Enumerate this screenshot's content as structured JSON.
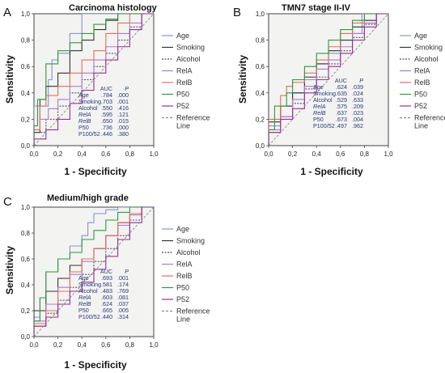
{
  "figure": {
    "auc_header": "AUC",
    "p_header": "P",
    "series_styles": [
      {
        "name": "Age",
        "color": "#8a92d6",
        "dash": ""
      },
      {
        "name": "Smoking",
        "color": "#333333",
        "dash": ""
      },
      {
        "name": "Alcohol",
        "color": "#555555",
        "dash": "2,1.5"
      },
      {
        "name": "RelA",
        "color": "#b07ad0",
        "dash": ""
      },
      {
        "name": "RelB",
        "color": "#e07060",
        "dash": ""
      },
      {
        "name": "P50",
        "color": "#2e9a3e",
        "dash": ""
      },
      {
        "name": "P52",
        "color": "#9a2f9a",
        "dash": ""
      },
      {
        "name": "Reference Line",
        "color": "#8a8a8a",
        "dash": "3,2"
      }
    ]
  },
  "chart_data": [
    {
      "type": "line",
      "panel": "A",
      "title": "Carcinoma histology",
      "xlabel": "1 - Specificity",
      "ylabel": "Sensitivity",
      "xlim": [
        0,
        1
      ],
      "ylim": [
        0,
        1
      ],
      "ticks": [
        "0,0",
        "0,2",
        "0,4",
        "0,6",
        "0,8",
        "1,0"
      ],
      "legend": [
        "Age",
        "Smoking",
        "Alcohol",
        "RelA",
        "RelB",
        "P50",
        "P52",
        "Reference",
        "Line"
      ],
      "table": [
        {
          "label": "Age",
          "auc": ".784",
          "p": ".000"
        },
        {
          "label": "Smoking",
          "auc": ".703",
          "p": ".001"
        },
        {
          "label": "Alcohol",
          "auc": ".550",
          "p": ".416"
        },
        {
          "label": "RelA",
          "auc": ".595",
          "p": ".121"
        },
        {
          "label": "RelB",
          "auc": ".650",
          "p": ".015"
        },
        {
          "label": "P50",
          "auc": ".736",
          "p": ".000"
        },
        {
          "label": "P100/52",
          "auc": ".446",
          "p": ".380"
        }
      ],
      "series": [
        {
          "name": "Age",
          "x": [
            0,
            0,
            0.12,
            0.15,
            0.2,
            0.3,
            0.4,
            0.5,
            0.6,
            0.7,
            0.8,
            1
          ],
          "y": [
            0,
            0.25,
            0.3,
            0.5,
            0.65,
            0.7,
            0.85,
            1,
            1,
            1,
            1,
            1
          ]
        },
        {
          "name": "Smoking",
          "x": [
            0,
            0.05,
            0.1,
            0.2,
            0.3,
            0.4,
            0.5,
            0.6,
            0.7,
            0.8,
            1
          ],
          "y": [
            0,
            0.1,
            0.35,
            0.45,
            0.55,
            0.72,
            0.8,
            0.88,
            0.95,
            1,
            1
          ]
        },
        {
          "name": "Alcohol",
          "x": [
            0,
            0.1,
            0.2,
            0.3,
            0.4,
            0.5,
            0.6,
            0.7,
            0.8,
            0.9,
            1
          ],
          "y": [
            0,
            0.1,
            0.2,
            0.3,
            0.4,
            0.5,
            0.6,
            0.7,
            0.8,
            0.9,
            1
          ]
        },
        {
          "name": "RelA",
          "x": [
            0,
            0.05,
            0.12,
            0.2,
            0.3,
            0.4,
            0.5,
            0.6,
            0.7,
            0.8,
            0.9,
            1
          ],
          "y": [
            0,
            0.12,
            0.2,
            0.28,
            0.35,
            0.45,
            0.55,
            0.65,
            0.75,
            0.85,
            0.93,
            1
          ]
        },
        {
          "name": "RelB",
          "x": [
            0,
            0.05,
            0.1,
            0.2,
            0.3,
            0.4,
            0.5,
            0.6,
            0.7,
            0.8,
            1
          ],
          "y": [
            0,
            0.12,
            0.3,
            0.38,
            0.45,
            0.55,
            0.65,
            0.72,
            0.85,
            0.93,
            1
          ]
        },
        {
          "name": "P50",
          "x": [
            0,
            0.03,
            0.1,
            0.2,
            0.3,
            0.4,
            0.5,
            0.6,
            0.7,
            0.8,
            1
          ],
          "y": [
            0,
            0.15,
            0.35,
            0.62,
            0.72,
            0.78,
            0.85,
            0.92,
            0.96,
            1,
            1
          ]
        },
        {
          "name": "P52",
          "x": [
            0,
            0.1,
            0.2,
            0.3,
            0.4,
            0.5,
            0.6,
            0.7,
            0.8,
            0.9,
            1
          ],
          "y": [
            0,
            0.05,
            0.12,
            0.2,
            0.32,
            0.42,
            0.55,
            0.65,
            0.75,
            0.88,
            1
          ]
        },
        {
          "name": "Reference Line",
          "x": [
            0,
            1
          ],
          "y": [
            0,
            1
          ]
        }
      ]
    },
    {
      "type": "line",
      "panel": "B",
      "title": "TMN7 stage II-IV",
      "xlabel": "1 - Specificity",
      "ylabel": "Sensitivity",
      "xlim": [
        0,
        1
      ],
      "ylim": [
        0,
        1
      ],
      "ticks": [
        "0,0",
        "0,2",
        "0,4",
        "0,6",
        "0,8",
        "1,0"
      ],
      "legend": [
        "Age",
        "Smoking",
        "Alcohol",
        "RelA",
        "RelB",
        "P50",
        "P52",
        "Reference",
        "Line"
      ],
      "table": [
        {
          "label": "Age",
          "auc": ".624",
          "p": ".039"
        },
        {
          "label": "Smoking",
          "auc": ".635",
          "p": ".024"
        },
        {
          "label": "Alcohol",
          "auc": ".529",
          "p": ".633"
        },
        {
          "label": "RelA",
          "auc": ".575",
          "p": ".209"
        },
        {
          "label": "RelB",
          "auc": ".637",
          "p": ".023"
        },
        {
          "label": "P50",
          "auc": ".673",
          "p": ".004"
        },
        {
          "label": "P100/52",
          "auc": ".497",
          "p": ".962"
        }
      ],
      "series": [
        {
          "name": "Age",
          "x": [
            0,
            0.1,
            0.2,
            0.3,
            0.4,
            0.5,
            0.6,
            0.7,
            0.78,
            0.82,
            1
          ],
          "y": [
            0,
            0.15,
            0.3,
            0.4,
            0.5,
            0.62,
            0.7,
            0.8,
            0.85,
            1,
            1
          ]
        },
        {
          "name": "Smoking",
          "x": [
            0,
            0.1,
            0.2,
            0.3,
            0.4,
            0.5,
            0.6,
            0.7,
            0.8,
            0.9,
            1
          ],
          "y": [
            0,
            0.18,
            0.3,
            0.4,
            0.52,
            0.62,
            0.72,
            0.8,
            0.9,
            0.95,
            1
          ]
        },
        {
          "name": "Alcohol",
          "x": [
            0,
            0.1,
            0.2,
            0.3,
            0.4,
            0.5,
            0.6,
            0.7,
            0.8,
            0.9,
            1
          ],
          "y": [
            0,
            0.1,
            0.22,
            0.32,
            0.43,
            0.52,
            0.62,
            0.72,
            0.82,
            0.92,
            1
          ]
        },
        {
          "name": "RelA",
          "x": [
            0,
            0.1,
            0.2,
            0.3,
            0.4,
            0.5,
            0.6,
            0.7,
            0.8,
            0.9,
            1
          ],
          "y": [
            0,
            0.12,
            0.22,
            0.35,
            0.45,
            0.58,
            0.65,
            0.75,
            0.85,
            0.93,
            1
          ]
        },
        {
          "name": "RelB",
          "x": [
            0,
            0.1,
            0.15,
            0.2,
            0.3,
            0.4,
            0.5,
            0.6,
            0.7,
            0.8,
            1
          ],
          "y": [
            0,
            0.2,
            0.38,
            0.45,
            0.48,
            0.55,
            0.65,
            0.75,
            0.85,
            0.93,
            1
          ]
        },
        {
          "name": "P50",
          "x": [
            0,
            0.05,
            0.15,
            0.2,
            0.3,
            0.4,
            0.5,
            0.6,
            0.7,
            0.8,
            1
          ],
          "y": [
            0,
            0.12,
            0.3,
            0.4,
            0.5,
            0.6,
            0.7,
            0.8,
            0.88,
            0.95,
            1
          ]
        },
        {
          "name": "P52",
          "x": [
            0,
            0.1,
            0.2,
            0.3,
            0.4,
            0.5,
            0.6,
            0.7,
            0.8,
            0.9,
            1
          ],
          "y": [
            0,
            0.1,
            0.2,
            0.28,
            0.4,
            0.5,
            0.6,
            0.7,
            0.8,
            0.9,
            1
          ]
        },
        {
          "name": "Reference Line",
          "x": [
            0,
            1
          ],
          "y": [
            0,
            1
          ]
        }
      ]
    },
    {
      "type": "line",
      "panel": "C",
      "title": "Medium/high grade",
      "xlabel": "1 - Specificity",
      "ylabel": "Sensitivity",
      "xlim": [
        0,
        1
      ],
      "ylim": [
        0,
        1
      ],
      "ticks": [
        "0,0",
        "0,2",
        "0,4",
        "0,6",
        "0,8",
        "1,0"
      ],
      "legend": [
        "Age",
        "Smoking",
        "Alcohol",
        "RelA",
        "RelB",
        "P50",
        "P52",
        "Reference",
        "Line"
      ],
      "table": [
        {
          "label": "Age",
          "auc": ".693",
          "p": ".001"
        },
        {
          "label": "Smoking",
          "auc": ".581",
          "p": ".174"
        },
        {
          "label": "Alcohol",
          "auc": ".483",
          "p": ".769"
        },
        {
          "label": "RelA",
          "auc": ".603",
          "p": ".081"
        },
        {
          "label": "RelB",
          "auc": ".624",
          "p": ".037"
        },
        {
          "label": "P50",
          "auc": ".665",
          "p": ".005"
        },
        {
          "label": "P100/52",
          "auc": ".440",
          "p": ".314"
        }
      ],
      "series": [
        {
          "name": "Age",
          "x": [
            0,
            0.05,
            0.1,
            0.2,
            0.3,
            0.4,
            0.45,
            0.5,
            0.6,
            0.7,
            0.8,
            1
          ],
          "y": [
            0,
            0.15,
            0.3,
            0.5,
            0.6,
            0.7,
            0.78,
            0.88,
            0.95,
            0.98,
            1,
            1
          ]
        },
        {
          "name": "Smoking",
          "x": [
            0,
            0.1,
            0.2,
            0.3,
            0.4,
            0.5,
            0.6,
            0.7,
            0.8,
            0.9,
            1
          ],
          "y": [
            0,
            0.2,
            0.35,
            0.45,
            0.55,
            0.6,
            0.68,
            0.78,
            0.88,
            0.95,
            1
          ]
        },
        {
          "name": "Alcohol",
          "x": [
            0,
            0.1,
            0.2,
            0.3,
            0.4,
            0.5,
            0.6,
            0.7,
            0.8,
            0.9,
            1
          ],
          "y": [
            0,
            0.08,
            0.18,
            0.28,
            0.38,
            0.48,
            0.58,
            0.68,
            0.78,
            0.9,
            1
          ]
        },
        {
          "name": "RelA",
          "x": [
            0,
            0.1,
            0.2,
            0.3,
            0.4,
            0.5,
            0.6,
            0.7,
            0.8,
            0.9,
            1
          ],
          "y": [
            0,
            0.12,
            0.25,
            0.38,
            0.48,
            0.58,
            0.68,
            0.78,
            0.86,
            0.94,
            1
          ]
        },
        {
          "name": "RelB",
          "x": [
            0,
            0.1,
            0.2,
            0.3,
            0.4,
            0.5,
            0.6,
            0.7,
            0.8,
            0.9,
            1
          ],
          "y": [
            0,
            0.1,
            0.2,
            0.35,
            0.5,
            0.6,
            0.68,
            0.78,
            0.88,
            0.95,
            1
          ]
        },
        {
          "name": "P50",
          "x": [
            0,
            0.05,
            0.1,
            0.2,
            0.3,
            0.4,
            0.5,
            0.6,
            0.7,
            0.8,
            1
          ],
          "y": [
            0,
            0.12,
            0.3,
            0.5,
            0.6,
            0.65,
            0.75,
            0.82,
            0.9,
            0.96,
            1
          ]
        },
        {
          "name": "P52",
          "x": [
            0,
            0.1,
            0.2,
            0.3,
            0.4,
            0.5,
            0.6,
            0.7,
            0.8,
            0.9,
            1
          ],
          "y": [
            0,
            0.08,
            0.15,
            0.25,
            0.35,
            0.42,
            0.52,
            0.62,
            0.75,
            0.88,
            1
          ]
        },
        {
          "name": "Reference Line",
          "x": [
            0,
            1
          ],
          "y": [
            0,
            1
          ]
        }
      ]
    }
  ]
}
